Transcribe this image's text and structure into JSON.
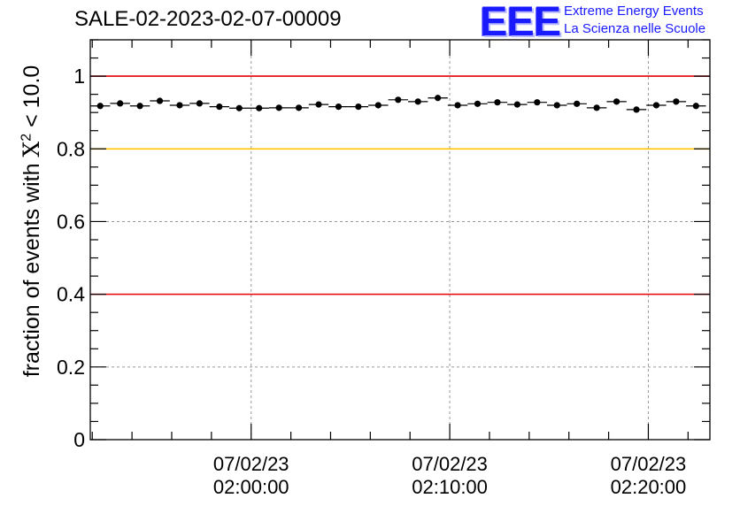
{
  "chart_data": {
    "type": "scatter",
    "title": "SALE-02-2023-02-07-00009",
    "ylabel_prefix": "fraction of events with ",
    "ylabel_symbol": "X",
    "ylabel_exponent": "2",
    "ylabel_suffix": " < 10.0",
    "xlabel": "",
    "ylim": [
      0,
      1.1
    ],
    "yticks": [
      {
        "value": 0,
        "label": "0"
      },
      {
        "value": 0.2,
        "label": "0.2"
      },
      {
        "value": 0.4,
        "label": "0.4"
      },
      {
        "value": 0.6,
        "label": "0.6"
      },
      {
        "value": 0.8,
        "label": "0.8"
      },
      {
        "value": 1.0,
        "label": "1"
      }
    ],
    "xlim_minutes": [
      -8.1,
      23.1
    ],
    "xticks": [
      {
        "minutes": 0,
        "date": "07/02/23",
        "time": "02:00:00"
      },
      {
        "minutes": 10,
        "date": "07/02/23",
        "time": "02:10:00"
      },
      {
        "minutes": 20,
        "date": "07/02/23",
        "time": "02:20:00"
      }
    ],
    "grid": true,
    "reference_lines": [
      {
        "y": 1.0,
        "color": "#e60000"
      },
      {
        "y": 0.8,
        "color": "#ffc400"
      },
      {
        "y": 0.4,
        "color": "#e60000"
      }
    ],
    "bin_width_minutes": 1.0,
    "points": [
      {
        "x": -7.6,
        "y": 0.918
      },
      {
        "x": -6.6,
        "y": 0.925
      },
      {
        "x": -5.6,
        "y": 0.918
      },
      {
        "x": -4.6,
        "y": 0.932
      },
      {
        "x": -3.6,
        "y": 0.92
      },
      {
        "x": -2.6,
        "y": 0.925
      },
      {
        "x": -1.6,
        "y": 0.916
      },
      {
        "x": -0.6,
        "y": 0.912
      },
      {
        "x": 0.4,
        "y": 0.912
      },
      {
        "x": 1.4,
        "y": 0.913
      },
      {
        "x": 2.4,
        "y": 0.913
      },
      {
        "x": 3.4,
        "y": 0.922
      },
      {
        "x": 4.4,
        "y": 0.916
      },
      {
        "x": 5.4,
        "y": 0.916
      },
      {
        "x": 6.4,
        "y": 0.92
      },
      {
        "x": 7.4,
        "y": 0.935
      },
      {
        "x": 8.4,
        "y": 0.93
      },
      {
        "x": 9.4,
        "y": 0.94
      },
      {
        "x": 10.4,
        "y": 0.92
      },
      {
        "x": 11.4,
        "y": 0.924
      },
      {
        "x": 12.4,
        "y": 0.928
      },
      {
        "x": 13.4,
        "y": 0.922
      },
      {
        "x": 14.4,
        "y": 0.928
      },
      {
        "x": 15.4,
        "y": 0.92
      },
      {
        "x": 16.4,
        "y": 0.924
      },
      {
        "x": 17.4,
        "y": 0.913
      },
      {
        "x": 18.4,
        "y": 0.93
      },
      {
        "x": 19.4,
        "y": 0.908
      },
      {
        "x": 20.4,
        "y": 0.92
      },
      {
        "x": 21.4,
        "y": 0.93
      },
      {
        "x": 22.4,
        "y": 0.918
      }
    ],
    "colors": {
      "marker": "#000000",
      "grid": "#9a9a9a",
      "axis": "#000000"
    }
  },
  "logo": {
    "mark": "EEE",
    "line1": "Extreme Energy Events",
    "line2": "La Scienza nelle Scuole"
  }
}
